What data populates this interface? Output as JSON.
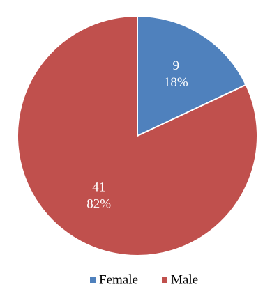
{
  "chart_data": {
    "type": "pie",
    "categories": [
      "Female",
      "Male"
    ],
    "values": [
      9,
      41
    ],
    "percents": [
      18,
      82
    ],
    "percent_labels": [
      "18%",
      "82%"
    ],
    "colors": [
      "#4f81bd",
      "#c0504d"
    ],
    "legend": "bottom"
  }
}
